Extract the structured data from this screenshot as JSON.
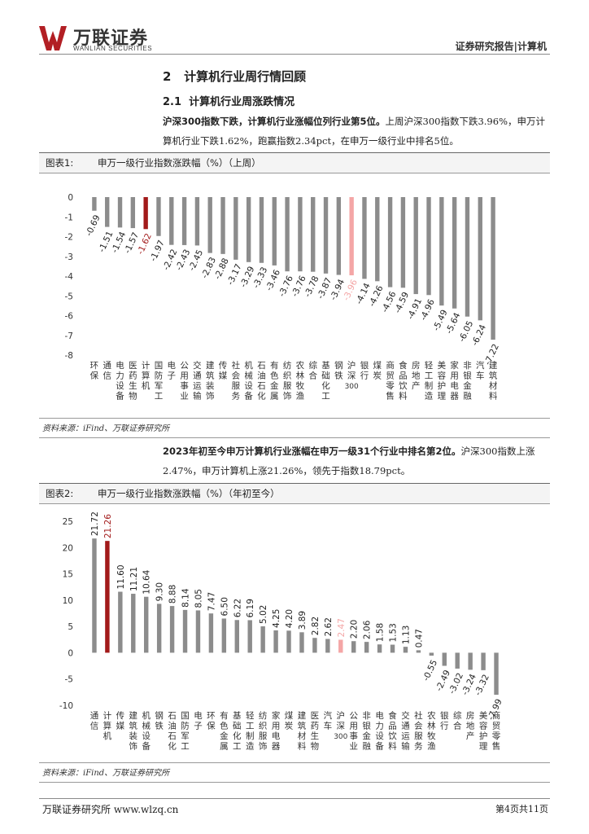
{
  "header": {
    "logo_cn": "万联证券",
    "logo_en": "WANLIAN SECURITIES",
    "report_tag": "证券研究报告|计算机"
  },
  "section": {
    "title": "2   计算机行业周行情回顾",
    "subtitle": "2.1  计算机行业周涨跌情况"
  },
  "para1": {
    "bold": "沪深300指数下跌，计算机行业涨幅位列行业第5位。",
    "text": "上周沪深300指数下跌3.96%，申万计算机行业下跌1.62%，跑赢指数2.34pct，在申万一级行业中排名5位。"
  },
  "para2": {
    "bold": "2023年初至今申万计算机行业涨幅在申万一级31个行业中排名第2位。",
    "text": "沪深300指数上涨2.47%，申万计算机上涨21.26%，领先于指数18.79pct。"
  },
  "fig1": {
    "label": "图表1:",
    "title": "申万一级行业指数涨跌幅（%）（上周）",
    "source": "资料来源：iFind、万联证券研究所"
  },
  "fig2": {
    "label": "图表2:",
    "title": "申万一级行业指数涨跌幅（%）（年初至今）",
    "source": "资料来源：iFind、万联证券研究所"
  },
  "footer": {
    "left": "万联证券研究所 www.wlzq.cn",
    "right": "第4页共11页"
  },
  "colors": {
    "gray": "#8c8c8c",
    "highlight": "#a21a1a",
    "index": "#f4a6a6"
  },
  "chart_data": [
    {
      "type": "bar",
      "categories": [
        "环保",
        "通信",
        "电力设备",
        "医药生物",
        "计算机",
        "国防军工",
        "电子",
        "公用事业",
        "交通运输",
        "建筑装饰",
        "传媒",
        "社会服务",
        "机械设备",
        "石油石化",
        "有色金属",
        "纺织服饰",
        "农林牧渔",
        "综合",
        "基础化工",
        "钢铁",
        "沪深300",
        "银行",
        "煤炭",
        "商贸零售",
        "食品饮料",
        "房地产",
        "轻工制造",
        "美容护理",
        "家用电器",
        "非银金融",
        "汽车",
        "建筑材料"
      ],
      "values": [
        -0.69,
        -1.51,
        -1.54,
        -1.57,
        -1.62,
        -1.97,
        -2.42,
        -2.43,
        -2.45,
        -2.83,
        -2.88,
        -3.17,
        -3.29,
        -3.33,
        -3.46,
        -3.76,
        -3.76,
        -3.78,
        -3.87,
        -3.94,
        -3.96,
        -4.14,
        -4.26,
        -4.56,
        -4.59,
        -4.91,
        -4.96,
        -5.49,
        -5.64,
        -6.05,
        -6.24,
        -7.22
      ],
      "highlight": [
        "计算机"
      ],
      "index_bar": [
        "沪深300"
      ],
      "ylim": [
        -8,
        0
      ],
      "yticks": [
        0,
        -1,
        -2,
        -3,
        -4,
        -5,
        -6,
        -7,
        -8
      ]
    },
    {
      "type": "bar",
      "categories": [
        "通信",
        "计算机",
        "传媒",
        "建筑装饰",
        "机械设备",
        "钢铁",
        "石油石化",
        "国防军工",
        "电子",
        "环保",
        "有色金属",
        "基础化工",
        "轻工制造",
        "纺织服饰",
        "家用电器",
        "煤炭",
        "建筑材料",
        "医药生物",
        "汽车",
        "沪深300",
        "公用事业",
        "非银金融",
        "电力设备",
        "食品饮料",
        "交通运输",
        "社会服务",
        "农林牧渔",
        "银行",
        "综合",
        "房地产",
        "美容护理",
        "商贸零售"
      ],
      "values": [
        21.72,
        21.26,
        11.6,
        11.21,
        10.64,
        9.3,
        8.88,
        8.14,
        8.05,
        7.47,
        6.5,
        6.22,
        6.19,
        5.02,
        4.25,
        4.2,
        3.89,
        2.82,
        2.62,
        2.47,
        2.2,
        2.06,
        1.58,
        1.53,
        1.13,
        0.47,
        -0.55,
        -2.49,
        -3.02,
        -3.24,
        -3.32,
        -7.99
      ],
      "highlight": [
        "计算机"
      ],
      "index_bar": [
        "沪深300"
      ],
      "ylim": [
        -10,
        25
      ],
      "yticks": [
        25,
        20,
        15,
        10,
        5,
        0,
        -5,
        -10
      ]
    }
  ]
}
